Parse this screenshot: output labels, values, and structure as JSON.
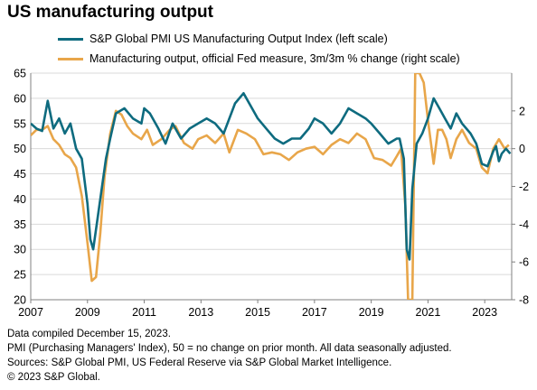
{
  "title": "US manufacturing output",
  "colors": {
    "pmi": "#0e6b7f",
    "fed": "#e8a64a",
    "grid": "#d9d9d9",
    "axis": "#808080"
  },
  "notes": [
    "Data compiled December 15, 2023.",
    "PMI (Purchasing Managers' Index), 50 = no change on prior month. All data seasonally adjusted.",
    "Sources: S&P Global PMI, US Federal Reserve via S&P Global Market Intelligence.",
    "© 2023 S&P Global."
  ],
  "chart_data": {
    "type": "line",
    "x_range": [
      2007,
      2023.95
    ],
    "x_ticks": [
      "2007",
      "2009",
      "2011",
      "2013",
      "2015",
      "2017",
      "2019",
      "2021",
      "2023"
    ],
    "left_axis": {
      "range": [
        20,
        65
      ],
      "ticks": [
        "20",
        "25",
        "30",
        "35",
        "40",
        "45",
        "50",
        "55",
        "60",
        "65"
      ]
    },
    "right_axis": {
      "range": [
        -8,
        4
      ],
      "ticks": [
        "-8",
        "-6",
        "-4",
        "-2",
        "0",
        "2"
      ]
    },
    "series": [
      {
        "name": "S&P Global PMI US Manufacturing Output Index (left scale)",
        "axis": "left",
        "points": [
          [
            2007.0,
            55
          ],
          [
            2007.2,
            54
          ],
          [
            2007.4,
            53.5
          ],
          [
            2007.6,
            59.5
          ],
          [
            2007.8,
            54
          ],
          [
            2008.0,
            56
          ],
          [
            2008.2,
            53
          ],
          [
            2008.4,
            55
          ],
          [
            2008.6,
            50
          ],
          [
            2008.8,
            48
          ],
          [
            2009.0,
            39
          ],
          [
            2009.1,
            32
          ],
          [
            2009.2,
            30
          ],
          [
            2009.35,
            36
          ],
          [
            2009.5,
            42
          ],
          [
            2009.65,
            48
          ],
          [
            2009.8,
            52
          ],
          [
            2010.0,
            57
          ],
          [
            2010.3,
            58
          ],
          [
            2010.6,
            56
          ],
          [
            2010.9,
            55
          ],
          [
            2011.0,
            58
          ],
          [
            2011.2,
            57
          ],
          [
            2011.5,
            54
          ],
          [
            2011.75,
            51
          ],
          [
            2012.0,
            55
          ],
          [
            2012.3,
            52
          ],
          [
            2012.6,
            54
          ],
          [
            2012.9,
            55
          ],
          [
            2013.2,
            56
          ],
          [
            2013.5,
            55
          ],
          [
            2013.8,
            53
          ],
          [
            2014.0,
            56
          ],
          [
            2014.2,
            59
          ],
          [
            2014.5,
            61
          ],
          [
            2014.8,
            58
          ],
          [
            2015.0,
            56
          ],
          [
            2015.3,
            54
          ],
          [
            2015.6,
            52
          ],
          [
            2015.9,
            51
          ],
          [
            2016.2,
            52
          ],
          [
            2016.5,
            52
          ],
          [
            2016.8,
            54
          ],
          [
            2017.0,
            56
          ],
          [
            2017.3,
            55
          ],
          [
            2017.6,
            53
          ],
          [
            2017.9,
            55
          ],
          [
            2018.2,
            58
          ],
          [
            2018.5,
            57
          ],
          [
            2018.8,
            56
          ],
          [
            2019.0,
            55
          ],
          [
            2019.3,
            53
          ],
          [
            2019.6,
            51
          ],
          [
            2019.9,
            52
          ],
          [
            2020.0,
            52
          ],
          [
            2020.15,
            48
          ],
          [
            2020.25,
            30
          ],
          [
            2020.35,
            28
          ],
          [
            2020.45,
            42
          ],
          [
            2020.6,
            51
          ],
          [
            2020.8,
            53
          ],
          [
            2021.0,
            56
          ],
          [
            2021.2,
            60
          ],
          [
            2021.4,
            58
          ],
          [
            2021.6,
            56
          ],
          [
            2021.8,
            54
          ],
          [
            2022.0,
            57
          ],
          [
            2022.2,
            55
          ],
          [
            2022.5,
            53
          ],
          [
            2022.7,
            51
          ],
          [
            2022.9,
            47
          ],
          [
            2023.1,
            46.5
          ],
          [
            2023.3,
            49.5
          ],
          [
            2023.4,
            50.5
          ],
          [
            2023.5,
            47.5
          ],
          [
            2023.6,
            49
          ],
          [
            2023.75,
            50
          ],
          [
            2023.9,
            49
          ]
        ]
      },
      {
        "name": "Manufacturing output, official Fed measure, 3m/3m % change (right scale)",
        "axis": "right",
        "points": [
          [
            2007.0,
            0.7
          ],
          [
            2007.2,
            1.0
          ],
          [
            2007.4,
            1.0
          ],
          [
            2007.6,
            1.2
          ],
          [
            2007.8,
            0.5
          ],
          [
            2008.0,
            0.2
          ],
          [
            2008.2,
            -0.3
          ],
          [
            2008.4,
            -0.5
          ],
          [
            2008.6,
            -1.0
          ],
          [
            2008.8,
            -2.5
          ],
          [
            2009.0,
            -5.0
          ],
          [
            2009.15,
            -7.0
          ],
          [
            2009.3,
            -6.8
          ],
          [
            2009.45,
            -4.5
          ],
          [
            2009.6,
            -1.5
          ],
          [
            2009.8,
            0.8
          ],
          [
            2010.0,
            2.0
          ],
          [
            2010.2,
            1.8
          ],
          [
            2010.4,
            1.2
          ],
          [
            2010.6,
            0.8
          ],
          [
            2010.9,
            0.5
          ],
          [
            2011.1,
            1.0
          ],
          [
            2011.3,
            0.2
          ],
          [
            2011.6,
            0.5
          ],
          [
            2011.9,
            1.0
          ],
          [
            2012.1,
            1.2
          ],
          [
            2012.4,
            0.3
          ],
          [
            2012.7,
            0.0
          ],
          [
            2012.9,
            0.5
          ],
          [
            2013.2,
            0.7
          ],
          [
            2013.5,
            0.3
          ],
          [
            2013.8,
            0.8
          ],
          [
            2014.0,
            -0.2
          ],
          [
            2014.3,
            1.0
          ],
          [
            2014.6,
            0.8
          ],
          [
            2014.9,
            0.5
          ],
          [
            2015.2,
            -0.3
          ],
          [
            2015.5,
            -0.2
          ],
          [
            2015.8,
            -0.3
          ],
          [
            2016.1,
            -0.6
          ],
          [
            2016.4,
            -0.2
          ],
          [
            2016.7,
            0.0
          ],
          [
            2017.0,
            0.1
          ],
          [
            2017.3,
            -0.3
          ],
          [
            2017.6,
            0.2
          ],
          [
            2017.9,
            0.5
          ],
          [
            2018.2,
            0.3
          ],
          [
            2018.5,
            0.8
          ],
          [
            2018.8,
            0.5
          ],
          [
            2019.1,
            -0.5
          ],
          [
            2019.4,
            -0.6
          ],
          [
            2019.7,
            -0.9
          ],
          [
            2019.9,
            -0.4
          ],
          [
            2020.05,
            0.0
          ],
          [
            2020.2,
            -3.0
          ],
          [
            2020.3,
            -8.0
          ],
          [
            2020.45,
            -8.0
          ],
          [
            2020.55,
            4.0
          ],
          [
            2020.7,
            4.0
          ],
          [
            2020.85,
            3.5
          ],
          [
            2021.0,
            1.5
          ],
          [
            2021.2,
            -0.8
          ],
          [
            2021.35,
            1.0
          ],
          [
            2021.5,
            1.0
          ],
          [
            2021.65,
            0.5
          ],
          [
            2021.8,
            -0.5
          ],
          [
            2022.0,
            0.5
          ],
          [
            2022.2,
            1.0
          ],
          [
            2022.45,
            0.3
          ],
          [
            2022.7,
            0.0
          ],
          [
            2022.9,
            -1.0
          ],
          [
            2023.1,
            -1.3
          ],
          [
            2023.3,
            0.0
          ],
          [
            2023.5,
            0.5
          ],
          [
            2023.7,
            0.0
          ],
          [
            2023.85,
            0.2
          ]
        ]
      }
    ]
  }
}
